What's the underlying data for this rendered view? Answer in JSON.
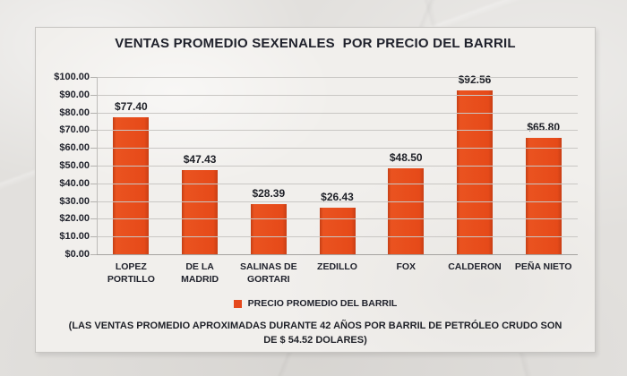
{
  "chart_data": {
    "type": "bar",
    "title": "VENTAS PROMEDIO SEXENALES  POR PRECIO DEL BARRIL",
    "categories": [
      "LOPEZ PORTILLO",
      "DE LA MADRID",
      "SALINAS DE GORTARI",
      "ZEDILLO",
      "FOX",
      "CALDERON",
      "PEÑA NIETO"
    ],
    "values": [
      77.4,
      47.43,
      28.39,
      26.43,
      48.5,
      92.56,
      65.8
    ],
    "value_labels": [
      "$77.40",
      "$47.43",
      "$28.39",
      "$26.43",
      "$48.50",
      "$92.56",
      "$65.80"
    ],
    "xlabel": "",
    "ylabel": "",
    "ylim": [
      0,
      100
    ],
    "ytick_step": 10,
    "ytick_labels": [
      "$0.00",
      "$10.00",
      "$20.00",
      "$30.00",
      "$40.00",
      "$50.00",
      "$60.00",
      "$70.00",
      "$80.00",
      "$90.00",
      "$100.00"
    ],
    "grid": true,
    "legend_position": "bottom",
    "bar_color": "#e5481c",
    "legend": [
      {
        "label": "PRECIO PROMEDIO DEL BARRIL",
        "color": "#e5481c"
      }
    ]
  },
  "footer": {
    "note": "(LAS VENTAS PROMEDIO APROXIMADAS DURANTE 42 AÑOS POR BARRIL DE PETRÓLEO CRUDO SON DE $ 54.52 DOLARES)"
  }
}
